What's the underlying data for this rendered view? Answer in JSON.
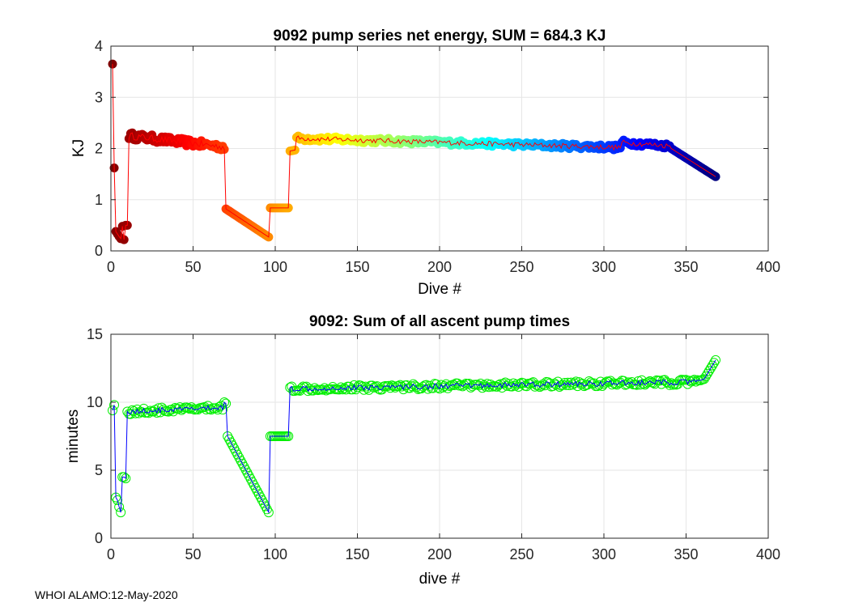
{
  "footer": "WHOI ALAMO:12-May-2020",
  "chart_data": [
    {
      "type": "scatter",
      "title": "9092 pump series net energy, SUM = 684.3 KJ",
      "xlabel": "Dive #",
      "ylabel": "KJ",
      "xlim": [
        0,
        400
      ],
      "ylim": [
        0,
        4
      ],
      "xticks": [
        0,
        50,
        100,
        150,
        200,
        250,
        300,
        350,
        400
      ],
      "yticks": [
        0,
        1,
        2,
        3,
        4
      ],
      "grid": true,
      "marker": "filled-circle-colored-by-dive",
      "line_color": "#ff0000",
      "segments": [
        {
          "x": [
            1,
            2,
            3
          ],
          "y": [
            3.65,
            1.62,
            0.38
          ]
        },
        {
          "x": [
            4,
            5,
            6,
            7,
            8,
            9,
            10
          ],
          "y": [
            0.33,
            0.28,
            0.24,
            0.48,
            0.22,
            0.5,
            0.5
          ]
        },
        {
          "x": [
            11,
            69
          ],
          "y": [
            2.25,
            2.03
          ],
          "noise": 0.07
        },
        {
          "x": [
            70,
            96
          ],
          "y": [
            0.82,
            0.27
          ]
        },
        {
          "x": [
            97,
            108
          ],
          "y": [
            0.84,
            0.84
          ]
        },
        {
          "x": [
            109,
            112
          ],
          "y": [
            1.95,
            1.97
          ]
        },
        {
          "x": [
            113,
            310
          ],
          "y": [
            2.2,
            2.02
          ],
          "noise": 0.05
        },
        {
          "x": [
            311,
            340
          ],
          "y": [
            2.12,
            2.05
          ],
          "noise": 0.05
        },
        {
          "x": [
            341,
            368
          ],
          "y": [
            2.0,
            1.45
          ]
        }
      ]
    },
    {
      "type": "scatter",
      "title": "9092: Sum of all ascent pump times",
      "xlabel": "dive #",
      "ylabel": "minutes",
      "xlim": [
        0,
        400
      ],
      "ylim": [
        0,
        15
      ],
      "xticks": [
        0,
        50,
        100,
        150,
        200,
        250,
        300,
        350,
        400
      ],
      "yticks": [
        0,
        5,
        10,
        15
      ],
      "grid": true,
      "marker_color": "#00ee00",
      "line_color": "#0000ff",
      "segments": [
        {
          "x": [
            1,
            2,
            3,
            4,
            5,
            6
          ],
          "y": [
            9.4,
            9.8,
            3.0,
            2.8,
            2.3,
            1.9
          ]
        },
        {
          "x": [
            7,
            8,
            9
          ],
          "y": [
            4.5,
            4.5,
            4.4
          ]
        },
        {
          "x": [
            10,
            68
          ],
          "y": [
            9.3,
            9.6
          ],
          "noise": 0.2
        },
        {
          "x": [
            69,
            70
          ],
          "y": [
            10.0,
            9.9
          ]
        },
        {
          "x": [
            71,
            96
          ],
          "y": [
            7.5,
            1.9
          ]
        },
        {
          "x": [
            97,
            108
          ],
          "y": [
            7.5,
            7.5
          ]
        },
        {
          "x": [
            109,
            360
          ],
          "y": [
            11.0,
            11.5
          ],
          "noise": 0.2
        },
        {
          "x": [
            361,
            368
          ],
          "y": [
            11.7,
            13.1
          ]
        }
      ]
    }
  ]
}
